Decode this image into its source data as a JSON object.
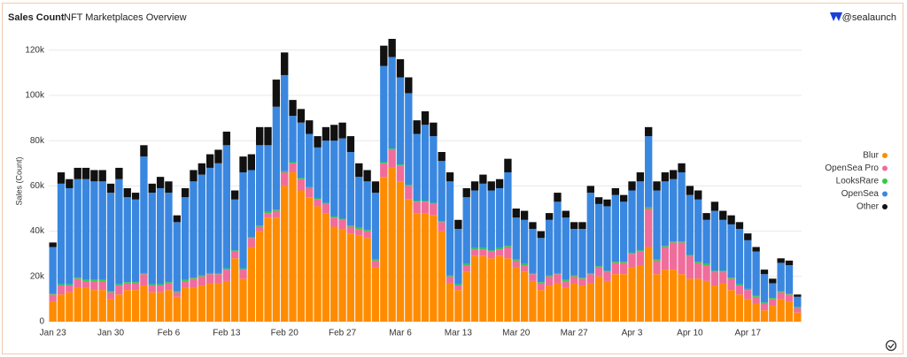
{
  "chart_data": {
    "type": "stacked_bar",
    "title": "Sales Count",
    "subtitle": "NFT Marketplaces Overview",
    "brand": "@sealaunch",
    "y_label": "Sales (Count)",
    "legend": "right",
    "grid": true,
    "ylim": [
      0,
      125000
    ],
    "yticks": [
      0,
      {
        "value": 20000,
        "label": "20k"
      },
      {
        "value": 40000,
        "label": "40k"
      },
      {
        "value": 60000,
        "label": "60k"
      },
      {
        "value": 80000,
        "label": "80k"
      },
      {
        "value": 100000,
        "label": "100k"
      },
      {
        "value": 120000,
        "label": "120k"
      }
    ],
    "categories": [
      "Jan 23",
      null,
      null,
      null,
      null,
      null,
      null,
      "Jan 30",
      null,
      null,
      null,
      null,
      null,
      null,
      "Feb 6",
      null,
      null,
      null,
      null,
      null,
      null,
      "Feb 13",
      null,
      null,
      null,
      null,
      null,
      null,
      "Feb 20",
      null,
      null,
      null,
      null,
      null,
      null,
      "Feb 27",
      null,
      null,
      null,
      null,
      null,
      null,
      "Mar 6",
      null,
      null,
      null,
      null,
      null,
      null,
      "Mar 13",
      null,
      null,
      null,
      null,
      null,
      null,
      "Mar 20",
      null,
      null,
      null,
      null,
      null,
      null,
      "Mar 27",
      null,
      null,
      null,
      null,
      null,
      null,
      "Apr 3",
      null,
      null,
      null,
      null,
      null,
      null,
      "Apr 10",
      null,
      null,
      null,
      null,
      null,
      null,
      "Apr 17",
      null,
      null,
      null,
      null,
      null,
      null
    ],
    "series": [
      {
        "name": "Blur",
        "color": "#ff8c00",
        "values": [
          9000,
          12000,
          13000,
          15000,
          15000,
          14000,
          14000,
          10000,
          12000,
          14000,
          14000,
          16000,
          13000,
          13000,
          14000,
          11000,
          15000,
          15000,
          16000,
          17000,
          17000,
          18000,
          28000,
          19000,
          33000,
          40000,
          46000,
          46000,
          60000,
          66000,
          58000,
          55000,
          51000,
          48000,
          42000,
          41000,
          39000,
          38000,
          37000,
          24000,
          64000,
          68000,
          62000,
          54000,
          48000,
          48000,
          47000,
          40000,
          17000,
          14000,
          22000,
          29000,
          29000,
          28000,
          29000,
          28000,
          24000,
          22000,
          18000,
          14000,
          16000,
          17000,
          15000,
          17000,
          16000,
          17000,
          20000,
          18000,
          21000,
          21000,
          24000,
          25000,
          33000,
          21000,
          23000,
          23000,
          21000,
          19000,
          19000,
          18000,
          16000,
          17000,
          14000,
          12000,
          10000,
          8000,
          5000,
          7000,
          10000,
          9000,
          4000
        ]
      },
      {
        "name": "OpenSea Pro",
        "color": "#f06c9b",
        "values": [
          3000,
          4000,
          3000,
          4000,
          3000,
          4000,
          4000,
          3000,
          4000,
          3000,
          3000,
          5000,
          3000,
          3000,
          3000,
          2000,
          3000,
          4000,
          4000,
          4000,
          4000,
          5000,
          3000,
          4000,
          4000,
          2000,
          2000,
          3000,
          6000,
          4000,
          5000,
          4000,
          3000,
          4000,
          4000,
          4000,
          3000,
          3000,
          3000,
          3000,
          6000,
          8000,
          7000,
          6000,
          5000,
          5000,
          5000,
          4000,
          3000,
          2000,
          3000,
          3000,
          3000,
          3000,
          3000,
          5000,
          3000,
          3000,
          3000,
          3000,
          4000,
          4000,
          3000,
          3000,
          3000,
          4000,
          4000,
          4000,
          5000,
          5000,
          6000,
          6000,
          17000,
          6000,
          10000,
          12000,
          14000,
          10000,
          7000,
          7000,
          6000,
          5000,
          5000,
          4000,
          4000,
          3000,
          3000,
          3000,
          3000,
          3000,
          2000
        ]
      },
      {
        "name": "LooksRare",
        "color": "#2ecc40",
        "values": [
          500,
          500,
          500,
          500,
          500,
          500,
          500,
          500,
          500,
          500,
          500,
          500,
          500,
          500,
          500,
          500,
          500,
          500,
          500,
          500,
          500,
          500,
          500,
          500,
          500,
          500,
          500,
          500,
          500,
          500,
          500,
          500,
          500,
          500,
          500,
          500,
          500,
          500,
          500,
          500,
          500,
          500,
          500,
          500,
          500,
          500,
          500,
          500,
          500,
          500,
          500,
          500,
          500,
          500,
          500,
          500,
          500,
          500,
          500,
          500,
          500,
          500,
          500,
          500,
          500,
          500,
          500,
          500,
          500,
          500,
          500,
          500,
          500,
          500,
          500,
          500,
          500,
          500,
          500,
          500,
          500,
          500,
          500,
          500,
          500,
          500,
          500,
          500,
          500,
          500,
          500
        ]
      },
      {
        "name": "OpenSea",
        "color": "#3a87e0",
        "values": [
          20500,
          44500,
          42500,
          43500,
          44500,
          43500,
          43500,
          43500,
          46500,
          37500,
          36500,
          51500,
          40500,
          42500,
          39500,
          30500,
          36500,
          42500,
          44500,
          46500,
          48500,
          54500,
          22500,
          42500,
          29500,
          35500,
          29500,
          45500,
          42500,
          20500,
          24500,
          23500,
          22500,
          27500,
          33500,
          35500,
          32500,
          22500,
          21500,
          29500,
          42500,
          40500,
          38500,
          40500,
          29500,
          33500,
          29500,
          26500,
          41500,
          24500,
          29500,
          25500,
          28500,
          26500,
          26500,
          32500,
          18500,
          19500,
          19500,
          19500,
          24500,
          31500,
          27500,
          20500,
          21500,
          35500,
          27500,
          28500,
          29500,
          26500,
          27500,
          30500,
          31500,
          30500,
          28500,
          27500,
          30500,
          26500,
          27500,
          19500,
          26500,
          22500,
          23500,
          24500,
          21500,
          19500,
          12500,
          6500,
          12500,
          12500,
          4500
        ]
      },
      {
        "name": "Other",
        "color": "#111111",
        "values": [
          2000,
          5000,
          4000,
          5000,
          5000,
          5000,
          5000,
          4000,
          5000,
          4000,
          3000,
          5000,
          4000,
          5000,
          5000,
          3000,
          4000,
          5000,
          5000,
          6000,
          6000,
          6000,
          4000,
          7000,
          7000,
          8000,
          8000,
          12000,
          10000,
          7000,
          6000,
          6000,
          5000,
          6000,
          7000,
          7000,
          7000,
          6000,
          5000,
          5000,
          9000,
          8000,
          8000,
          7000,
          6000,
          6000,
          6000,
          4000,
          4000,
          4000,
          4000,
          4000,
          4000,
          4000,
          4000,
          6000,
          4000,
          4000,
          3000,
          3000,
          3000,
          4000,
          3000,
          3000,
          3000,
          3000,
          3000,
          3000,
          3000,
          3000,
          4000,
          4000,
          4000,
          4000,
          4000,
          4000,
          4000,
          4000,
          4000,
          3000,
          4000,
          4000,
          4000,
          3000,
          3000,
          2000,
          2000,
          2000,
          2000,
          2000,
          1000
        ]
      }
    ]
  }
}
